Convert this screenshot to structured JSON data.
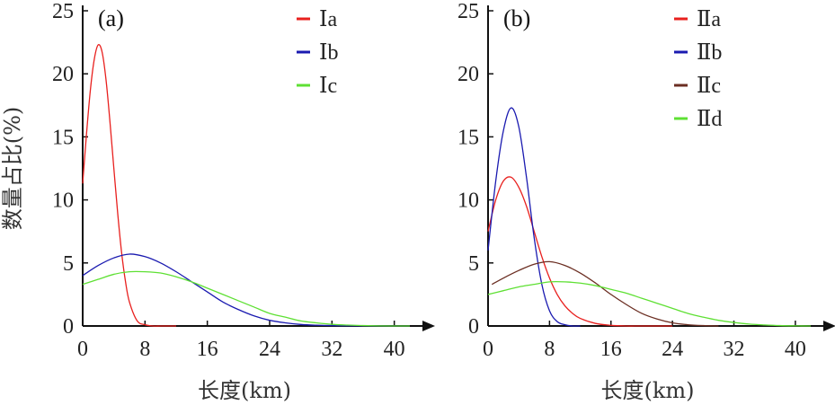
{
  "chart_data": [
    {
      "type": "line",
      "panel_label": "(a)",
      "xlabel": "长度(km)",
      "ylabel": "数量占比(%)",
      "xlim": [
        0,
        42
      ],
      "ylim": [
        0,
        25
      ],
      "xticks": [
        0,
        8,
        16,
        24,
        32,
        40
      ],
      "yticks": [
        0,
        5,
        10,
        15,
        20,
        25
      ],
      "legend_position": "top-right",
      "grid": false,
      "series": [
        {
          "name": "Ⅰa",
          "color": "#e8201e",
          "x": [
            0,
            0.5,
            1,
            1.5,
            2,
            2.5,
            3,
            3.5,
            4,
            4.5,
            5,
            5.5,
            6,
            7,
            8,
            9,
            10,
            11,
            12
          ],
          "values": [
            11.3,
            15.3,
            18.8,
            21.2,
            22.3,
            21.7,
            19.5,
            16.2,
            12.5,
            8.9,
            5.8,
            3.5,
            1.9,
            0.4,
            0.1,
            0,
            0,
            0,
            0
          ]
        },
        {
          "name": "Ⅰb",
          "color": "#1a1ab0",
          "x": [
            0,
            2,
            4,
            6,
            8,
            10,
            12,
            14,
            16,
            18,
            20,
            22,
            24,
            26,
            28,
            30,
            32,
            36,
            40,
            42
          ],
          "values": [
            4.0,
            4.8,
            5.4,
            5.7,
            5.5,
            5.0,
            4.3,
            3.5,
            2.7,
            1.9,
            1.3,
            0.8,
            0.45,
            0.25,
            0.12,
            0.06,
            0.03,
            0.01,
            0,
            0
          ]
        },
        {
          "name": "Ⅰc",
          "color": "#5ee033",
          "x": [
            0,
            2,
            4,
            6,
            8,
            10,
            12,
            14,
            16,
            18,
            20,
            22,
            24,
            26,
            28,
            30,
            32,
            34,
            36,
            38,
            40,
            42
          ],
          "values": [
            3.3,
            3.7,
            4.1,
            4.3,
            4.3,
            4.2,
            3.9,
            3.5,
            3.0,
            2.5,
            2.0,
            1.5,
            1.0,
            0.7,
            0.4,
            0.25,
            0.13,
            0.07,
            0.03,
            0.01,
            0,
            0
          ]
        }
      ]
    },
    {
      "type": "line",
      "panel_label": "(b)",
      "xlabel": "长度(km)",
      "ylabel": "",
      "xlim": [
        0,
        42
      ],
      "ylim": [
        0,
        25
      ],
      "xticks": [
        0,
        8,
        16,
        24,
        32,
        40
      ],
      "yticks": [
        0,
        5,
        10,
        15,
        20,
        25
      ],
      "legend_position": "top-right",
      "grid": false,
      "series": [
        {
          "name": "Ⅱa",
          "color": "#e8201e",
          "x": [
            0,
            1,
            2,
            3,
            4,
            5,
            6,
            7,
            8,
            9,
            10,
            11,
            12,
            14,
            16,
            18,
            20,
            24
          ],
          "values": [
            7.5,
            10.0,
            11.5,
            11.8,
            11.0,
            9.5,
            7.5,
            5.5,
            3.8,
            2.5,
            1.6,
            1.0,
            0.6,
            0.2,
            0.05,
            0,
            0,
            0
          ]
        },
        {
          "name": "Ⅱb",
          "color": "#1a1ab0",
          "x": [
            0,
            1,
            2,
            3,
            4,
            5,
            6,
            7,
            8,
            9,
            10,
            11,
            12
          ],
          "values": [
            6.0,
            11.5,
            15.5,
            17.3,
            15.8,
            11.8,
            7.0,
            3.3,
            1.2,
            0.35,
            0.1,
            0,
            0
          ]
        },
        {
          "name": "Ⅱc",
          "color": "#6b2e22",
          "x": [
            0.5,
            2,
            4,
            6,
            8,
            10,
            12,
            14,
            16,
            18,
            20,
            22,
            24,
            26,
            28,
            30
          ],
          "values": [
            3.3,
            3.8,
            4.4,
            4.9,
            5.1,
            4.8,
            4.2,
            3.4,
            2.5,
            1.7,
            1.0,
            0.55,
            0.25,
            0.1,
            0.03,
            0
          ]
        },
        {
          "name": "Ⅱd",
          "color": "#5ee033",
          "x": [
            0,
            2,
            4,
            6,
            8,
            10,
            12,
            14,
            16,
            18,
            20,
            22,
            24,
            26,
            28,
            30,
            32,
            34,
            36,
            38,
            40,
            42
          ],
          "values": [
            2.5,
            2.8,
            3.1,
            3.3,
            3.5,
            3.5,
            3.4,
            3.2,
            2.9,
            2.6,
            2.2,
            1.8,
            1.4,
            1.0,
            0.7,
            0.45,
            0.28,
            0.15,
            0.08,
            0.03,
            0.01,
            0
          ]
        }
      ]
    }
  ]
}
